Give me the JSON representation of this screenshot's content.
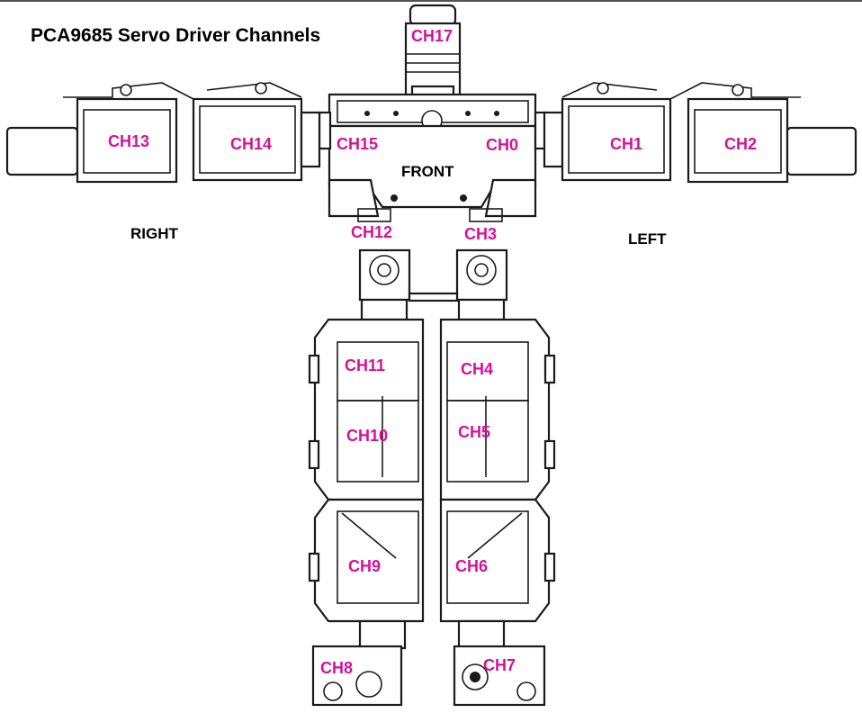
{
  "title": "PCA9685 Servo Driver Channels",
  "sides": {
    "right": "RIGHT",
    "left": "LEFT",
    "front": "FRONT"
  },
  "label_color": "#d6109a",
  "channels": {
    "ch0": "CH0",
    "ch1": "CH1",
    "ch2": "CH2",
    "ch3": "CH3",
    "ch4": "CH4",
    "ch5": "CH5",
    "ch6": "CH6",
    "ch7": "CH7",
    "ch8": "CH8",
    "ch9": "CH9",
    "ch10": "CH10",
    "ch11": "CH11",
    "ch12": "CH12",
    "ch13": "CH13",
    "ch14": "CH14",
    "ch15": "CH15",
    "ch17": "CH17"
  }
}
